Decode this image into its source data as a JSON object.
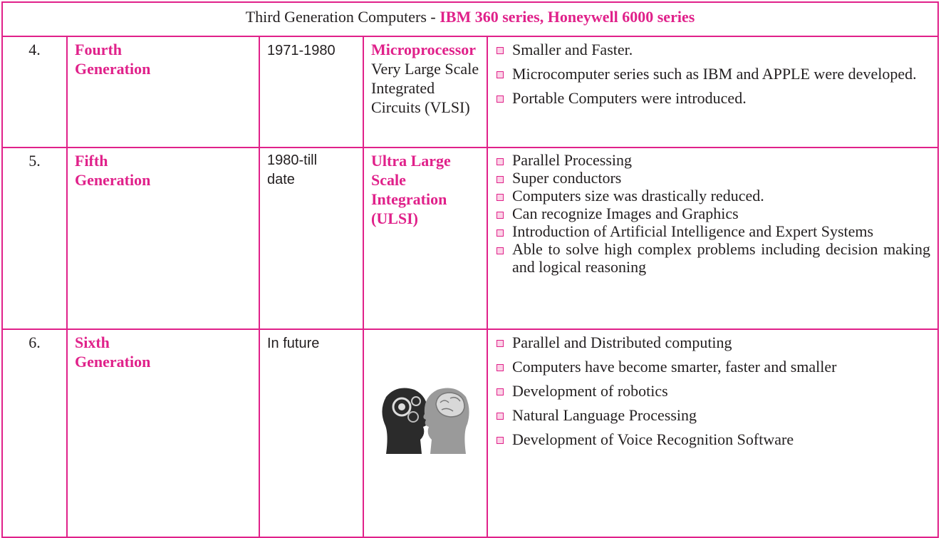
{
  "header": {
    "text": "Third Generation Computers -",
    "highlight": "IBM 360 series, Honeywell 6000 series"
  },
  "rows": [
    {
      "number": "4.",
      "generation": "Fourth Generation",
      "period": "1971-1980",
      "technology_highlight": "Microprocessor",
      "technology": "Very Large Scale Integrated Circuits (VLSI)",
      "features": [
        "Smaller and Faster.",
        "Microcomputer series such as IBM and APPLE were developed.",
        "Portable Computers were introduced."
      ]
    },
    {
      "number": "5.",
      "generation": "Fifth Generation",
      "period": "1980-till date",
      "technology_highlight": "Ultra Large Scale Integration (ULSI)",
      "features": [
        "Parallel Processing",
        "Super conductors",
        "Computers size was drastically reduced.",
        "Can recognize Images and Graphics",
        "Introduction of Artificial Intelligence and Expert Systems",
        "Able to solve high complex problems including decision making and logical reasoning"
      ]
    },
    {
      "number": "6.",
      "generation": "Sixth Generation",
      "period": "In future",
      "features": [
        "Parallel and Distributed computing",
        "Computers have become smarter, faster and smaller",
        "Development of robotics",
        "Natural Language Processing",
        "Development of Voice Recognition Software"
      ]
    }
  ]
}
